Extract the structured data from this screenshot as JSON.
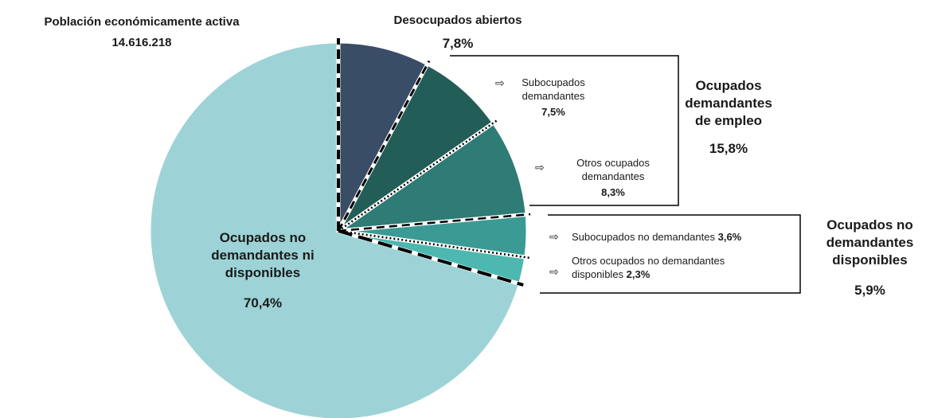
{
  "chart_data": {
    "type": "pie",
    "title": "Población económicamente activa",
    "subtitle": "14.616.218",
    "categories": [
      "Desocupados abiertos",
      "Subocupados demandantes",
      "Otros ocupados demandantes",
      "Subocupados no demandantes",
      "Otros ocupados no demandantes disponibles",
      "Ocupados no demandantes ni disponibles"
    ],
    "values": [
      7.8,
      7.5,
      8.3,
      3.6,
      2.3,
      70.4
    ],
    "value_labels": [
      "7,8%",
      "7,5%",
      "8,3%",
      "3,6%",
      "2,3%",
      "70,4%"
    ],
    "colors": [
      "#3a4d66",
      "#235d57",
      "#2f7b75",
      "#3a9a94",
      "#4db8b0",
      "#9dd3d6"
    ],
    "groups": [
      {
        "name": "Ocupados demandantes de empleo",
        "value": 15.8,
        "label": "15,8%"
      },
      {
        "name": "Ocupados no demandantes disponibles",
        "value": 5.9,
        "label": "5,9%"
      }
    ]
  }
}
